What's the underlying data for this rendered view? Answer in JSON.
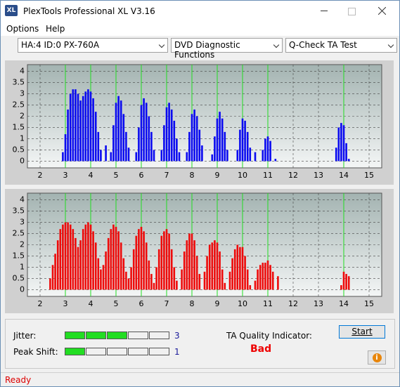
{
  "window": {
    "title": "PlexTools Professional XL V3.16",
    "icon": "XL"
  },
  "menu": [
    "Options",
    "Help"
  ],
  "toolbar": {
    "drive": "HA:4 ID:0  PX-760A",
    "function": "DVD Diagnostic Functions",
    "test": "Q-Check TA Test"
  },
  "charts": [
    {
      "type": "bar",
      "color": "#0a0af0",
      "marker_color": "#22dd22",
      "xlim": [
        1.5,
        15.5
      ],
      "ylim": [
        -0.3,
        4.3
      ],
      "xticks": [
        2,
        3,
        4,
        5,
        6,
        7,
        8,
        9,
        10,
        11,
        12,
        13,
        14,
        15
      ],
      "yticks": [
        0,
        0.5,
        1,
        1.5,
        2,
        2.5,
        3,
        3.5,
        4
      ],
      "grid": true,
      "markers": [
        3,
        4,
        5,
        6,
        7,
        8,
        9,
        10,
        11,
        14
      ],
      "x": [
        2.9,
        3.0,
        3.1,
        3.2,
        3.3,
        3.4,
        3.5,
        3.6,
        3.7,
        3.8,
        3.9,
        4.0,
        4.1,
        4.2,
        4.3,
        4.4,
        4.6,
        4.8,
        4.9,
        5.0,
        5.1,
        5.2,
        5.3,
        5.4,
        5.5,
        5.8,
        5.9,
        6.0,
        6.1,
        6.2,
        6.3,
        6.4,
        6.5,
        6.8,
        6.9,
        7.0,
        7.1,
        7.2,
        7.3,
        7.4,
        7.5,
        7.8,
        7.9,
        8.0,
        8.1,
        8.2,
        8.3,
        8.4,
        8.8,
        8.9,
        9.0,
        9.1,
        9.2,
        9.3,
        9.4,
        9.8,
        9.9,
        10.0,
        10.1,
        10.2,
        10.3,
        10.5,
        10.8,
        10.9,
        11.0,
        11.1,
        11.3,
        13.7,
        13.8,
        13.9,
        14.0,
        14.1,
        14.2
      ],
      "values": [
        0.4,
        1.2,
        2.3,
        3.0,
        3.2,
        3.2,
        3.0,
        2.7,
        2.9,
        3.1,
        3.2,
        3.1,
        2.8,
        2.2,
        1.3,
        0.5,
        0.7,
        0.4,
        1.6,
        2.6,
        2.9,
        2.7,
        2.1,
        1.3,
        0.6,
        0.4,
        1.5,
        2.5,
        2.8,
        2.6,
        2.0,
        1.3,
        0.5,
        0.5,
        1.6,
        2.4,
        2.6,
        2.3,
        1.8,
        1.0,
        0.4,
        0.4,
        1.3,
        2.1,
        2.3,
        2.0,
        1.4,
        0.7,
        0.3,
        1.1,
        1.9,
        2.2,
        1.9,
        1.3,
        0.5,
        0.5,
        1.4,
        1.9,
        1.8,
        1.3,
        0.6,
        0.4,
        0.5,
        1.0,
        1.1,
        0.9,
        0.1,
        0.6,
        1.5,
        1.7,
        1.6,
        0.8,
        0.1
      ]
    },
    {
      "type": "bar",
      "color": "#ee0a0a",
      "marker_color": "#22dd22",
      "xlim": [
        1.5,
        15.5
      ],
      "ylim": [
        -0.3,
        4.3
      ],
      "xticks": [
        2,
        3,
        4,
        5,
        6,
        7,
        8,
        9,
        10,
        11,
        12,
        13,
        14,
        15
      ],
      "yticks": [
        0,
        0.5,
        1,
        1.5,
        2,
        2.5,
        3,
        3.5,
        4
      ],
      "grid": true,
      "markers": [
        3,
        4,
        5,
        6,
        7,
        8,
        9,
        10,
        11,
        14
      ],
      "x": [
        2.4,
        2.5,
        2.6,
        2.7,
        2.8,
        2.9,
        3.0,
        3.1,
        3.2,
        3.3,
        3.4,
        3.5,
        3.6,
        3.7,
        3.8,
        3.9,
        4.0,
        4.1,
        4.2,
        4.3,
        4.4,
        4.5,
        4.6,
        4.7,
        4.8,
        4.9,
        5.0,
        5.1,
        5.2,
        5.3,
        5.4,
        5.5,
        5.6,
        5.7,
        5.8,
        5.9,
        6.0,
        6.1,
        6.2,
        6.3,
        6.4,
        6.5,
        6.6,
        6.7,
        6.8,
        6.9,
        7.0,
        7.1,
        7.2,
        7.3,
        7.4,
        7.6,
        7.7,
        7.8,
        7.9,
        8.0,
        8.1,
        8.2,
        8.3,
        8.5,
        8.6,
        8.7,
        8.8,
        8.9,
        9.0,
        9.1,
        9.2,
        9.3,
        9.5,
        9.6,
        9.7,
        9.8,
        9.9,
        10.0,
        10.1,
        10.2,
        10.3,
        10.5,
        10.6,
        10.7,
        10.8,
        10.9,
        11.0,
        11.1,
        11.2,
        11.4,
        13.9,
        14.0,
        14.1,
        14.2
      ],
      "values": [
        0.5,
        1.1,
        1.6,
        2.2,
        2.7,
        2.9,
        3.0,
        3.0,
        2.9,
        2.7,
        2.3,
        1.9,
        2.2,
        2.7,
        2.9,
        3.0,
        2.9,
        2.6,
        2.1,
        1.4,
        0.9,
        1.1,
        1.7,
        2.3,
        2.7,
        2.9,
        2.8,
        2.6,
        2.1,
        1.4,
        0.8,
        0.5,
        1.0,
        1.8,
        2.4,
        2.7,
        2.8,
        2.6,
        2.1,
        1.3,
        0.7,
        0.3,
        1.0,
        1.8,
        2.4,
        2.6,
        2.7,
        2.5,
        1.8,
        1.0,
        0.4,
        0.9,
        1.7,
        2.2,
        2.5,
        2.5,
        2.2,
        1.5,
        0.7,
        0.8,
        1.5,
        2.0,
        2.1,
        2.2,
        2.1,
        1.7,
        0.9,
        0.3,
        0.8,
        1.4,
        1.8,
        2.0,
        1.9,
        1.9,
        1.5,
        0.9,
        0.2,
        0.4,
        0.9,
        1.1,
        1.2,
        1.2,
        1.3,
        1.1,
        0.8,
        0.6,
        0.2,
        0.8,
        0.7,
        0.6
      ]
    }
  ],
  "results": {
    "jitter": {
      "label": "Jitter:",
      "value": 3
    },
    "peak_shift": {
      "label": "Peak Shift:",
      "value": 1
    },
    "segments": 5,
    "on_color": "#22dd22",
    "quality_label": "TA Quality Indicator:",
    "quality": "Bad",
    "start": "Start"
  },
  "status": "Ready"
}
